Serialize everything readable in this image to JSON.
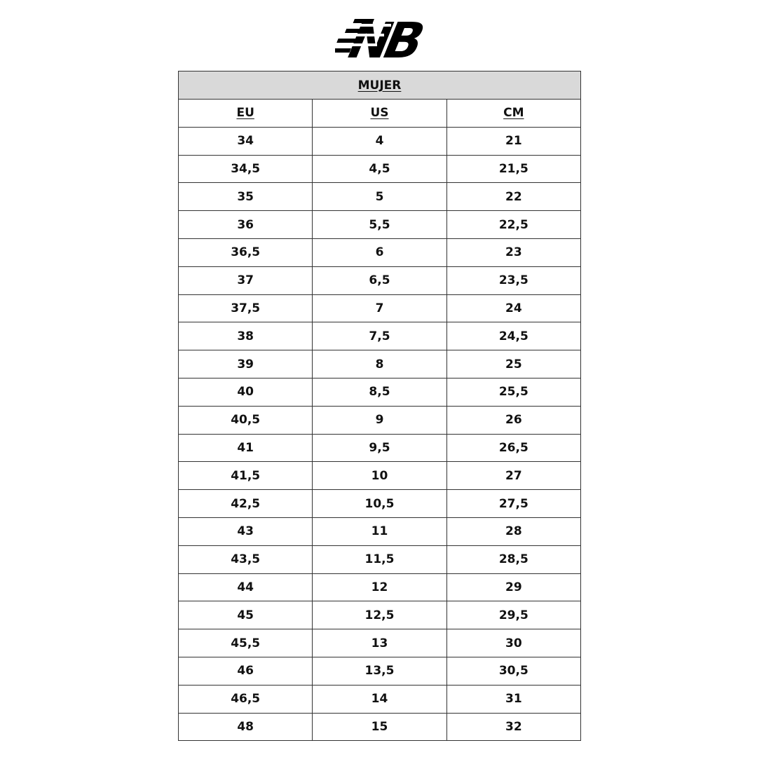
{
  "brand": {
    "logo_text": "NB",
    "logo_color": "#000000"
  },
  "table": {
    "title": "MUJER",
    "header_bg": "#d9d9d9",
    "columns": [
      "EU",
      "US",
      "CM"
    ],
    "rows": [
      [
        "34",
        "4",
        "21"
      ],
      [
        "34,5",
        "4,5",
        "21,5"
      ],
      [
        "35",
        "5",
        "22"
      ],
      [
        "36",
        "5,5",
        "22,5"
      ],
      [
        "36,5",
        "6",
        "23"
      ],
      [
        "37",
        "6,5",
        "23,5"
      ],
      [
        "37,5",
        "7",
        "24"
      ],
      [
        "38",
        "7,5",
        "24,5"
      ],
      [
        "39",
        "8",
        "25"
      ],
      [
        "40",
        "8,5",
        "25,5"
      ],
      [
        "40,5",
        "9",
        "26"
      ],
      [
        "41",
        "9,5",
        "26,5"
      ],
      [
        "41,5",
        "10",
        "27"
      ],
      [
        "42,5",
        "10,5",
        "27,5"
      ],
      [
        "43",
        "11",
        "28"
      ],
      [
        "43,5",
        "11,5",
        "28,5"
      ],
      [
        "44",
        "12",
        "29"
      ],
      [
        "45",
        "12,5",
        "29,5"
      ],
      [
        "45,5",
        "13",
        "30"
      ],
      [
        "46",
        "13,5",
        "30,5"
      ],
      [
        "46,5",
        "14",
        "31"
      ],
      [
        "48",
        "15",
        "32"
      ]
    ]
  }
}
